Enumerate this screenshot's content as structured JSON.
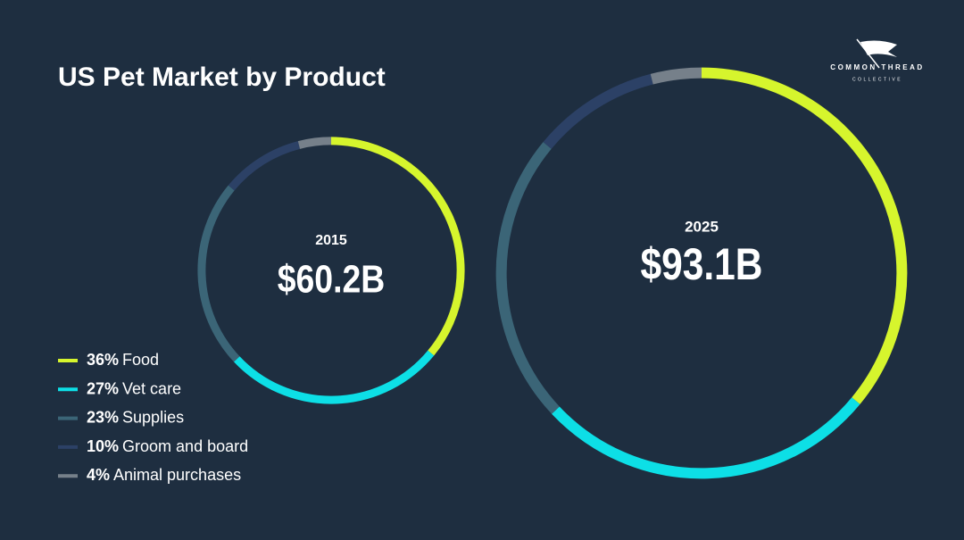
{
  "chart_data": {
    "type": "donut",
    "title": "US Pet Market by Product",
    "categories": [
      "Food",
      "Vet care",
      "Supplies",
      "Groom and board",
      "Animal purchases"
    ],
    "values": [
      36,
      27,
      23,
      10,
      4
    ],
    "value_labels": [
      "36%",
      "27%",
      "23%",
      "10%",
      "4%"
    ],
    "colors": [
      "#d6f52d",
      "#0ddfe6",
      "#3b6577",
      "#2c4166",
      "#76808a"
    ],
    "rings": [
      {
        "label": "2015",
        "total": 60.2,
        "total_label": "$60.2B"
      },
      {
        "label": "2025",
        "total": 93.1,
        "total_label": "$93.1B"
      }
    ]
  },
  "logo": {
    "name": "COMMON THREAD",
    "sub": "COLLECTIVE"
  }
}
